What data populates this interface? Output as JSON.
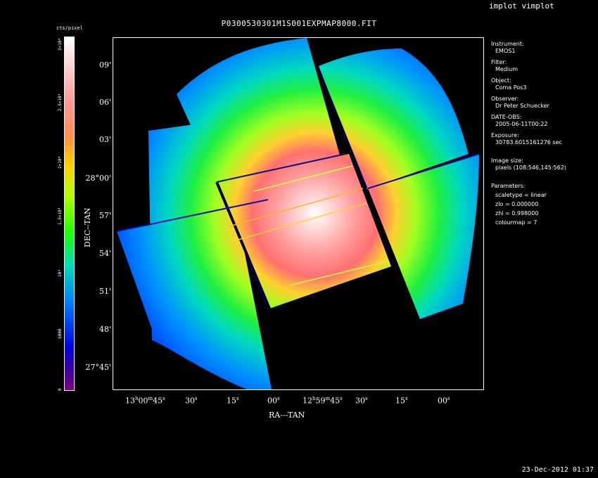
{
  "window": {
    "program_title": "implot vimplot",
    "timestamp": "23-Dec-2012 01:37"
  },
  "plot": {
    "title": "P0300530301M1S001EXPMAP8000.FIT",
    "xlabel": "RA---TAN",
    "ylabel": "DEC--TAN",
    "y_ticks": [
      "09'",
      "06'",
      "03'",
      "28°00'",
      "57'",
      "54'",
      "51'",
      "48'",
      "27°45'"
    ],
    "x_ticks": [
      {
        "main": "13",
        "sup1": "h",
        "mid": "00",
        "sup2": "m",
        "end": "45",
        "sup3": "s"
      },
      {
        "main": "30",
        "sup1": "s",
        "mid": "",
        "sup2": "",
        "end": "",
        "sup3": ""
      },
      {
        "main": "15",
        "sup1": "s",
        "mid": "",
        "sup2": "",
        "end": "",
        "sup3": ""
      },
      {
        "main": "00",
        "sup1": "s",
        "mid": "",
        "sup2": "",
        "end": "",
        "sup3": ""
      },
      {
        "main": "12",
        "sup1": "h",
        "mid": "59",
        "sup2": "m",
        "end": "45",
        "sup3": "s"
      },
      {
        "main": "30",
        "sup1": "s",
        "mid": "",
        "sup2": "",
        "end": "",
        "sup3": ""
      },
      {
        "main": "15",
        "sup1": "s",
        "mid": "",
        "sup2": "",
        "end": "",
        "sup3": ""
      },
      {
        "main": "00",
        "sup1": "s",
        "mid": "",
        "sup2": "",
        "end": "",
        "sup3": ""
      }
    ]
  },
  "colorbar": {
    "unit": "cts/pixel",
    "labels": [
      "3×10⁴",
      "2.5×10⁴",
      "2×10⁴",
      "1.5×10⁴",
      "10⁴",
      "5000",
      "0"
    ],
    "colormap": [
      "#ffffff",
      "#ff8888",
      "#ffa000",
      "#d8ff00",
      "#20ff00",
      "#00e0c0",
      "#0060ff",
      "#0000d0",
      "#800080"
    ]
  },
  "info": {
    "instrument_label": "Instrument:",
    "instrument": "EMOS1",
    "filter_label": "Filter:",
    "filter": "Medium",
    "object_label": "Object:",
    "object": "Coma Pos3",
    "observer_label": "Observer:",
    "observer": "Dr Peter Schuecker",
    "date_label": "DATE-OBS:",
    "date": "2005-06-11T00:22",
    "exposure_label": "Exposure:",
    "exposure": "30783.6015161276 sec",
    "size_label": "Image size:",
    "size": "pixels (108:546,145:562)",
    "params_label": "Parameters:",
    "scaletype": "scaletype = linear",
    "zlo": "zlo = 0.000000",
    "zhi": "zhi = 0.998000",
    "colourmap": "colourmap =  7"
  }
}
